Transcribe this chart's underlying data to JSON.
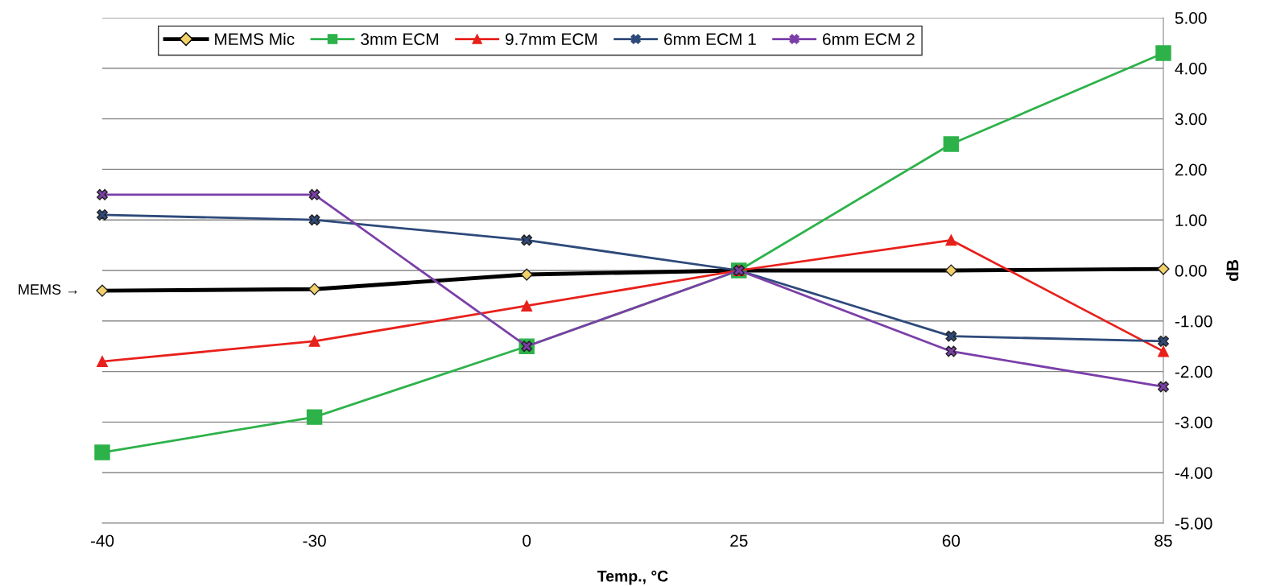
{
  "chart_data": {
    "type": "line",
    "xlabel": "Temp., °C",
    "ylabel": "dB",
    "categories": [
      "-40",
      "-30",
      "0",
      "25",
      "60",
      "85"
    ],
    "series": [
      {
        "name": "MEMS Mic",
        "color": "#000000",
        "marker": "diamond",
        "values": [
          -0.4,
          -0.37,
          -0.08,
          0,
          0,
          0.03
        ]
      },
      {
        "name": "3mm ECM",
        "color": "#2db24a",
        "marker": "square",
        "values": [
          -3.6,
          -2.9,
          -1.5,
          0,
          2.5,
          4.3
        ]
      },
      {
        "name": "9.7mm ECM",
        "color": "#e8201b",
        "marker": "triangle",
        "values": [
          -1.8,
          -1.4,
          -0.7,
          0,
          0.6,
          -1.6
        ]
      },
      {
        "name": "6mm ECM 1",
        "color": "#2e4a7a",
        "marker": "cross",
        "values": [
          1.1,
          1.0,
          0.6,
          0,
          -1.3,
          -1.4
        ]
      },
      {
        "name": "6mm ECM 2",
        "color": "#7b3fa8",
        "marker": "cross",
        "values": [
          1.5,
          1.5,
          -1.5,
          0,
          -1.6,
          -2.3
        ]
      }
    ],
    "ylim": [
      -5,
      5
    ],
    "yticks": [
      {
        "value": -5,
        "label": "-5.00"
      },
      {
        "value": -4,
        "label": "-4.00"
      },
      {
        "value": -3,
        "label": "-3.00"
      },
      {
        "value": -2,
        "label": "-2.00"
      },
      {
        "value": -1,
        "label": "-1.00"
      },
      {
        "value": 0,
        "label": "0.00"
      },
      {
        "value": 1,
        "label": "1.00"
      },
      {
        "value": 2,
        "label": "2.00"
      },
      {
        "value": 3,
        "label": "3.00"
      },
      {
        "value": 4,
        "label": "4.00"
      },
      {
        "value": 5,
        "label": "5.00"
      }
    ],
    "annotations": [
      {
        "text": "MEMS →",
        "x": "-40",
        "y": -0.4
      }
    ],
    "grid": "y",
    "legend": "top left",
    "line_style": "solid"
  }
}
